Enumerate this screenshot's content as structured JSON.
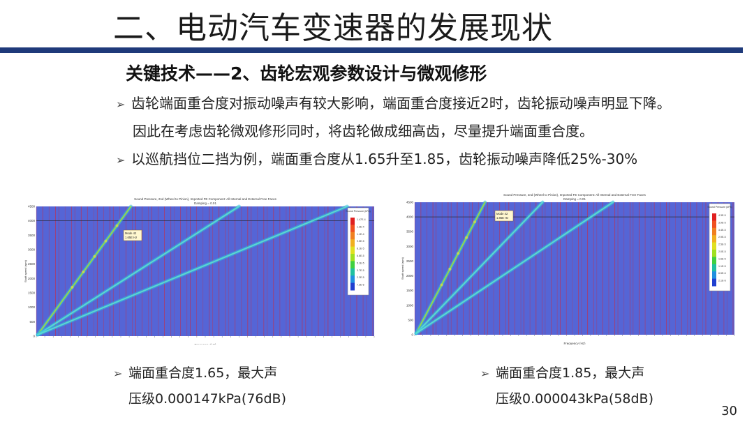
{
  "slide": {
    "title": "二、电动汽车变速器的发展现状",
    "subtitle": "关键技术——2、齿轮宏观参数设计与微观修形",
    "bullets": [
      "齿轮端面重合度对振动噪声有较大影响，端面重合度接近2时，齿轮振动噪声明显下降。",
      "因此在考虑齿轮微观修形同时，将齿轮做成细高齿，尽量提升端面重合度。",
      "以巡航挡位二挡为例，端面重合度从1.65升至1.85，齿轮振动噪声降低25%-30%"
    ],
    "bullet_marker": "➢",
    "page_number": "30"
  },
  "charts": {
    "left": {
      "title": "Sound Pressure, 2nd (Wheel to Pinion), Imported FE Component: All Internal and External Free Faces",
      "subtitle": "Damping = 0.01",
      "xlabel": "Frequency (Hz)",
      "ylabel": "Shaft speed (rpm)",
      "annotation": [
        "Mode 42",
        "1.65E Hz"
      ],
      "y_ticks": [
        "4500",
        "4000",
        "3500",
        "3000",
        "2500",
        "2000",
        "1500",
        "1000",
        "500",
        "0"
      ],
      "colorbar_title": "Sound Pressure (kPa)",
      "colorbar_values": [
        "1.47E-4",
        "1.3E-4",
        "1.1E-4",
        "9.5E-5",
        "8.1E-5",
        "6.6E-5",
        "5.1E-5",
        "3.7E-5",
        "2.2E-5",
        "7.3E-6"
      ],
      "caption_line1": "端面重合度1.65，最大声",
      "caption_line2": "压级0.000147kPa(76dB)"
    },
    "right": {
      "title": "Sound Pressure, 2nd (Wheel to Pinion), Imported FE Component: All Internal and External Free Faces",
      "subtitle": "Damping = 0.01",
      "xlabel": "Frequency (Hz)",
      "ylabel": "Shaft speed (rpm)",
      "annotation": [
        "Mode 42",
        "1.85E Hz"
      ],
      "y_ticks": [
        "4500",
        "4000",
        "3500",
        "3000",
        "2500",
        "2000",
        "1500",
        "1000",
        "500",
        "0"
      ],
      "colorbar_title": "Sound Pressure (kPa)",
      "colorbar_values": [
        "4.3E-5",
        "3.9E-5",
        "3.4E-5",
        "2.9E-5",
        "2.5E-5",
        "2.0E-5",
        "1.6E-5",
        "1.1E-5",
        "6.5E-6",
        "2.1E-6"
      ],
      "caption_line1": "端面重合度1.85，最大声",
      "caption_line2": "压级0.000043kPa(58dB)"
    }
  },
  "colors": {
    "title_bar": "#1f3a7a",
    "plot_bg": "#5565d6",
    "red_line": "#c03050"
  }
}
